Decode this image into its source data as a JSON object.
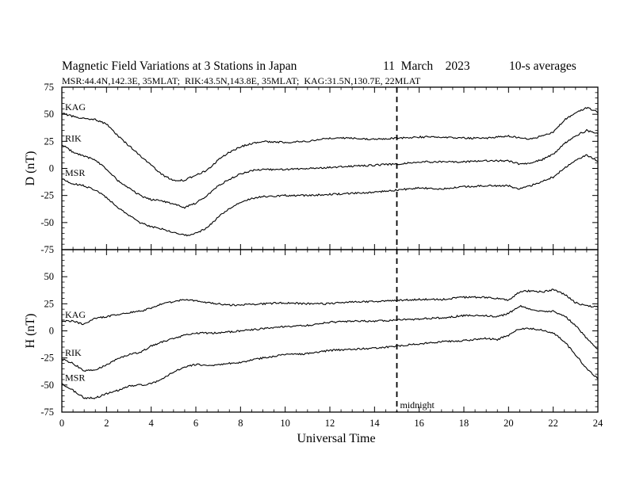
{
  "chart_data": {
    "type": "line",
    "title_parts": [
      "Magnetic Field Variations at 3 Stations in Japan",
      "11  March    2023",
      "10-s averages"
    ],
    "subtitle": "MSR:44.4N,142.3E, 35MLAT;  RIK:43.5N,143.8E, 35MLAT;  KAG:31.5N,130.7E, 22MLAT",
    "xlabel": "Universal Time",
    "xlim": [
      0,
      24
    ],
    "xticks": [
      0,
      2,
      4,
      6,
      8,
      10,
      12,
      14,
      16,
      18,
      20,
      22,
      24
    ],
    "xtick_labels": [
      "0",
      "2",
      "4",
      "6",
      "8",
      "10",
      "12",
      "14",
      "16",
      "18",
      "20",
      "22",
      "24"
    ],
    "annotation": {
      "x": 15,
      "label": "midnight",
      "style": "dashed"
    },
    "panels": [
      {
        "ylabel": "D (nT)",
        "ylim": [
          -75,
          75
        ],
        "yticks": [
          -75,
          -50,
          -25,
          0,
          25,
          50,
          75
        ],
        "ytick_labels": [
          "-75",
          "-50",
          "-25",
          "0",
          "25",
          "50",
          "75"
        ],
        "series": [
          {
            "name": "KAG",
            "x": [
              0,
              0.5,
              1,
              1.5,
              2,
              2.5,
              3,
              3.5,
              4,
              4.5,
              5,
              5.5,
              6,
              6.5,
              7,
              7.5,
              8,
              8.5,
              9,
              10,
              11,
              12,
              13,
              14,
              15,
              16,
              17,
              18,
              19,
              20,
              20.5,
              21,
              21.5,
              22,
              22.5,
              23,
              23.5,
              24
            ],
            "values": [
              51,
              48,
              46,
              45,
              41,
              30,
              21,
              12,
              3,
              -6,
              -11,
              -11,
              -6,
              -2,
              8,
              15,
              20,
              23,
              25,
              24,
              25,
              28,
              28,
              27,
              28,
              29,
              29,
              28,
              28,
              30,
              28,
              27,
              30,
              33,
              45,
              51,
              56,
              52
            ]
          },
          {
            "name": "RIK",
            "x": [
              0,
              0.5,
              1,
              1.5,
              2,
              2.5,
              3,
              3.5,
              4,
              4.5,
              5,
              5.5,
              6,
              6.5,
              7,
              7.5,
              8,
              8.5,
              9,
              10,
              11,
              12,
              13,
              14,
              15,
              16,
              17,
              18,
              19,
              20,
              20.5,
              21,
              21.5,
              22,
              22.5,
              23,
              23.5,
              24
            ],
            "values": [
              22,
              15,
              11,
              8,
              -1,
              -11,
              -18,
              -25,
              -29,
              -30,
              -33,
              -36,
              -32,
              -25,
              -16,
              -10,
              -5,
              -2,
              -1,
              -1,
              0,
              1,
              2,
              3,
              4,
              6,
              6,
              6,
              7,
              7,
              4,
              5,
              8,
              13,
              23,
              30,
              35,
              32
            ]
          },
          {
            "name": "MSR",
            "x": [
              0,
              0.5,
              1,
              1.5,
              2,
              2.5,
              3,
              3.5,
              4,
              4.5,
              5,
              5.5,
              6,
              6.5,
              7,
              7.5,
              8,
              8.5,
              9,
              10,
              11,
              12,
              13,
              14,
              15,
              16,
              17,
              18,
              19,
              20,
              20.5,
              21,
              21.5,
              22,
              22.5,
              23,
              23.5,
              24
            ],
            "values": [
              -10,
              -14,
              -16,
              -20,
              -27,
              -36,
              -43,
              -50,
              -54,
              -56,
              -59,
              -62,
              -60,
              -55,
              -45,
              -37,
              -31,
              -28,
              -26,
              -25,
              -25,
              -24,
              -23,
              -22,
              -20,
              -18,
              -19,
              -17,
              -16,
              -16,
              -19,
              -16,
              -12,
              -8,
              0,
              8,
              12,
              7
            ]
          }
        ]
      },
      {
        "ylabel": "H (nT)",
        "ylim": [
          -75,
          75
        ],
        "yticks": [
          -75,
          -50,
          -25,
          0,
          25,
          50
        ],
        "ytick_labels": [
          "-75",
          "-50",
          "-25",
          "0",
          "25",
          "50"
        ],
        "series": [
          {
            "name": "KAG",
            "x": [
              0,
              0.5,
              1,
              1.5,
              2,
              2.5,
              3,
              3.5,
              4,
              4.5,
              5,
              5.5,
              6,
              6.5,
              7,
              7.5,
              8,
              9,
              10,
              11,
              12,
              13,
              14,
              15,
              16,
              17,
              18,
              19,
              19.5,
              20,
              20.5,
              21,
              21.5,
              22,
              22.5,
              23,
              23.5,
              24
            ],
            "values": [
              9,
              9,
              6,
              12,
              13,
              15,
              17,
              18,
              21,
              25,
              27,
              29,
              28,
              26,
              25,
              24,
              24,
              25,
              26,
              25,
              25,
              27,
              27,
              28,
              29,
              29,
              31,
              31,
              30,
              28,
              36,
              37,
              36,
              38,
              34,
              26,
              23,
              22
            ]
          },
          {
            "name": "RIK",
            "x": [
              0,
              0.5,
              1,
              1.5,
              2,
              2.5,
              3,
              3.5,
              4,
              4.5,
              5,
              5.5,
              6,
              6.5,
              7,
              7.5,
              8,
              9,
              10,
              11,
              12,
              13,
              14,
              15,
              16,
              17,
              18,
              19,
              19.5,
              20,
              20.5,
              21,
              21.5,
              22,
              22.5,
              23,
              23.5,
              24
            ],
            "values": [
              -26,
              -30,
              -37,
              -36,
              -31,
              -26,
              -22,
              -20,
              -14,
              -10,
              -7,
              -4,
              -2,
              -2,
              -2,
              -1,
              0,
              2,
              4,
              5,
              8,
              9,
              9,
              10,
              11,
              12,
              14,
              14,
              13,
              16,
              23,
              20,
              18,
              18,
              14,
              5,
              -7,
              -17
            ]
          },
          {
            "name": "MSR",
            "x": [
              0,
              0.5,
              1,
              1.5,
              2,
              2.5,
              3,
              3.5,
              4,
              4.5,
              5,
              5.5,
              6,
              6.5,
              7,
              7.5,
              8,
              9,
              10,
              11,
              12,
              13,
              14,
              15,
              16,
              17,
              18,
              19,
              19.5,
              20,
              20.5,
              21,
              21.5,
              22,
              22.5,
              23,
              23.5,
              24
            ],
            "values": [
              -49,
              -55,
              -62,
              -62,
              -58,
              -55,
              -51,
              -50,
              -49,
              -44,
              -38,
              -33,
              -31,
              -32,
              -31,
              -30,
              -29,
              -25,
              -22,
              -21,
              -18,
              -17,
              -16,
              -14,
              -12,
              -10,
              -9,
              -7,
              -8,
              -4,
              2,
              2,
              1,
              -2,
              -10,
              -22,
              -35,
              -44
            ]
          }
        ]
      }
    ]
  }
}
